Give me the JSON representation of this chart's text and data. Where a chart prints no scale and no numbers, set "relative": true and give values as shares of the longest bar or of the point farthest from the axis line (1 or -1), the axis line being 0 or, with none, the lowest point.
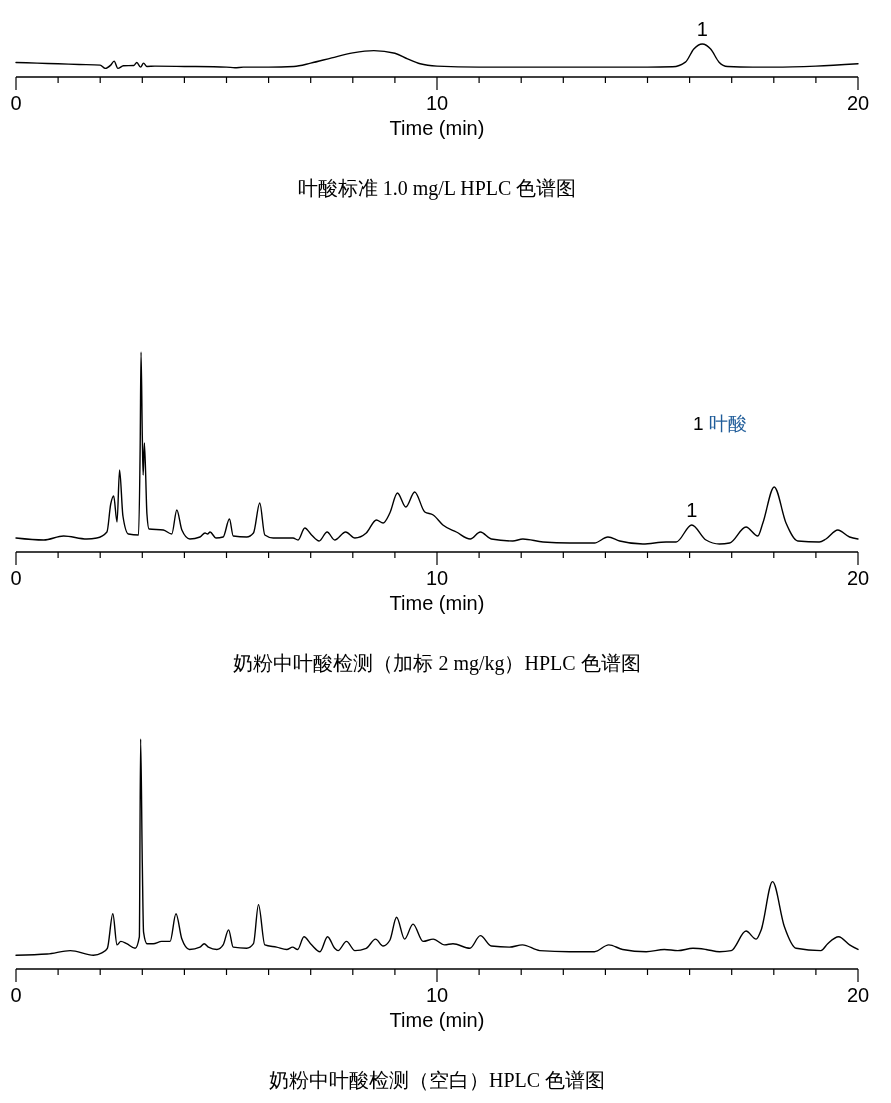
{
  "chart_data": [
    {
      "type": "line",
      "title": "叶酸标准 1.0 mg/L HPLC 色谱图",
      "xlabel": "Time (min)",
      "relative": true,
      "xlim": [
        0,
        20
      ],
      "xticks": [
        0,
        {
          "value": 1,
          "label": null
        },
        {
          "value": 2,
          "label": null
        },
        {
          "value": 3,
          "label": null
        },
        {
          "value": 4,
          "label": null
        },
        {
          "value": 5,
          "label": null
        },
        {
          "value": 6,
          "label": null
        },
        {
          "value": 7,
          "label": null
        },
        {
          "value": 8,
          "label": null
        },
        {
          "value": 9,
          "label": null
        },
        10,
        {
          "value": 11,
          "label": null
        },
        {
          "value": 12,
          "label": null
        },
        {
          "value": 13,
          "label": null
        },
        {
          "value": 14,
          "label": null
        },
        {
          "value": 15,
          "label": null
        },
        {
          "value": 16,
          "label": null
        },
        {
          "value": 17,
          "label": null
        },
        {
          "value": 18,
          "label": null
        },
        {
          "value": 19,
          "label": null
        },
        20
      ],
      "x": [
        0,
        0.5,
        1,
        1.5,
        2,
        2.12,
        2.25,
        2.33,
        2.42,
        2.55,
        2.8,
        2.87,
        2.96,
        3.03,
        3.11,
        3.3,
        4,
        5,
        5.2,
        5.4,
        6,
        6.6,
        7,
        7.5,
        8,
        8.5,
        9,
        9.3,
        9.6,
        10,
        11,
        12,
        13,
        14,
        15,
        15.6,
        15.9,
        16.1,
        16.3,
        16.5,
        16.7,
        16.9,
        17.5,
        18,
        19,
        20
      ],
      "series": [
        {
          "color": "#000000",
          "values": [
            0.44,
            0.42,
            0.4,
            0.38,
            0.36,
            0.26,
            0.36,
            0.48,
            0.26,
            0.34,
            0.35,
            0.44,
            0.3,
            0.42,
            0.32,
            0.33,
            0.32,
            0.3,
            0.28,
            0.3,
            0.3,
            0.32,
            0.42,
            0.58,
            0.73,
            0.8,
            0.72,
            0.55,
            0.4,
            0.33,
            0.3,
            0.3,
            0.3,
            0.3,
            0.3,
            0.31,
            0.45,
            0.85,
            1.0,
            0.85,
            0.45,
            0.32,
            0.3,
            0.3,
            0.33,
            0.4
          ]
        }
      ],
      "annotations": [
        {
          "text": "1",
          "x": 16.3,
          "y": 1.0
        }
      ]
    },
    {
      "type": "line",
      "title": "奶粉中叶酸检测（加标 2 mg/kg）HPLC 色谱图",
      "xlabel": "Time (min)",
      "relative": true,
      "xlim": [
        0,
        20
      ],
      "xticks": [
        0,
        {
          "value": 1,
          "label": null
        },
        {
          "value": 2,
          "label": null
        },
        {
          "value": 3,
          "label": null
        },
        {
          "value": 4,
          "label": null
        },
        {
          "value": 5,
          "label": null
        },
        {
          "value": 6,
          "label": null
        },
        {
          "value": 7,
          "label": null
        },
        {
          "value": 8,
          "label": null
        },
        {
          "value": 9,
          "label": null
        },
        10,
        {
          "value": 11,
          "label": null
        },
        {
          "value": 12,
          "label": null
        },
        {
          "value": 13,
          "label": null
        },
        {
          "value": 14,
          "label": null
        },
        {
          "value": 15,
          "label": null
        },
        {
          "value": 16,
          "label": null
        },
        {
          "value": 17,
          "label": null
        },
        {
          "value": 18,
          "label": null
        },
        {
          "value": 19,
          "label": null
        },
        20
      ],
      "x": [
        0,
        0.66,
        1.13,
        1.68,
        1.92,
        2.16,
        2.25,
        2.32,
        2.4,
        2.46,
        2.54,
        2.67,
        2.91,
        2.95,
        2.97,
        3.0,
        3.02,
        3.05,
        3.11,
        3.16,
        3.5,
        3.7,
        3.82,
        3.94,
        4.13,
        4.37,
        4.49,
        4.55,
        4.61,
        4.75,
        4.92,
        5.07,
        5.16,
        5.48,
        5.64,
        5.79,
        5.91,
        6.11,
        6.58,
        6.7,
        6.86,
        7.02,
        7.2,
        7.39,
        7.57,
        7.83,
        8.05,
        8.32,
        8.56,
        8.72,
        8.88,
        9.06,
        9.26,
        9.47,
        9.71,
        9.91,
        10.14,
        10.46,
        10.79,
        11.03,
        11.29,
        11.8,
        12.04,
        12.52,
        13.15,
        13.74,
        14.06,
        14.34,
        14.89,
        15.44,
        15.68,
        16.05,
        16.39,
        16.71,
        16.95,
        17.34,
        17.62,
        17.74,
        18.01,
        18.29,
        18.57,
        19.08,
        19.24,
        19.52,
        19.8,
        20
      ],
      "series": [
        {
          "color": "#000000",
          "values": [
            0.07,
            0.06,
            0.08,
            0.065,
            0.07,
            0.1,
            0.24,
            0.28,
            0.15,
            0.41,
            0.18,
            0.09,
            0.085,
            0.54,
            1.0,
            0.58,
            0.385,
            0.545,
            0.19,
            0.115,
            0.11,
            0.09,
            0.21,
            0.11,
            0.065,
            0.075,
            0.095,
            0.09,
            0.1,
            0.07,
            0.075,
            0.165,
            0.08,
            0.075,
            0.095,
            0.245,
            0.085,
            0.07,
            0.07,
            0.06,
            0.12,
            0.085,
            0.055,
            0.1,
            0.06,
            0.1,
            0.07,
            0.095,
            0.16,
            0.145,
            0.195,
            0.295,
            0.225,
            0.3,
            0.2,
            0.185,
            0.135,
            0.1,
            0.065,
            0.1,
            0.065,
            0.055,
            0.065,
            0.05,
            0.045,
            0.045,
            0.075,
            0.055,
            0.04,
            0.05,
            0.05,
            0.135,
            0.06,
            0.04,
            0.045,
            0.125,
            0.08,
            0.145,
            0.325,
            0.145,
            0.055,
            0.05,
            0.065,
            0.11,
            0.075,
            0.065
          ]
        }
      ],
      "annotations": [
        {
          "text": "1",
          "x": 16.05,
          "y": 0.135
        },
        "1 叶酸"
      ]
    },
    {
      "type": "line",
      "title": "奶粉中叶酸检测（空白）HPLC 色谱图",
      "xlabel": "Time (min)",
      "relative": true,
      "xlim": [
        0,
        20
      ],
      "xticks": [
        0,
        {
          "value": 1,
          "label": null
        },
        {
          "value": 2,
          "label": null
        },
        {
          "value": 3,
          "label": null
        },
        {
          "value": 4,
          "label": null
        },
        {
          "value": 5,
          "label": null
        },
        {
          "value": 6,
          "label": null
        },
        {
          "value": 7,
          "label": null
        },
        {
          "value": 8,
          "label": null
        },
        {
          "value": 9,
          "label": null
        },
        10,
        {
          "value": 11,
          "label": null
        },
        {
          "value": 12,
          "label": null
        },
        {
          "value": 13,
          "label": null
        },
        {
          "value": 14,
          "label": null
        },
        {
          "value": 15,
          "label": null
        },
        {
          "value": 16,
          "label": null
        },
        {
          "value": 17,
          "label": null
        },
        {
          "value": 18,
          "label": null
        },
        {
          "value": 19,
          "label": null
        },
        20
      ],
      "x": [
        0,
        0.74,
        1.29,
        1.84,
        2.04,
        2.17,
        2.3,
        2.4,
        2.49,
        2.63,
        2.83,
        2.93,
        2.96,
        3.0,
        3.03,
        3.11,
        3.26,
        3.46,
        3.66,
        3.8,
        3.94,
        4.12,
        4.37,
        4.47,
        4.57,
        4.77,
        4.92,
        5.05,
        5.16,
        5.48,
        5.64,
        5.76,
        5.91,
        6.19,
        6.43,
        6.57,
        6.69,
        6.84,
        7.02,
        7.22,
        7.4,
        7.57,
        7.65,
        7.85,
        8.05,
        8.32,
        8.54,
        8.72,
        8.88,
        9.04,
        9.23,
        9.43,
        9.67,
        9.91,
        10.18,
        10.38,
        10.78,
        11.03,
        11.29,
        11.72,
        12.03,
        12.44,
        13.15,
        13.74,
        14.08,
        14.41,
        14.97,
        15.4,
        15.72,
        16.08,
        16.39,
        16.71,
        16.99,
        17.34,
        17.58,
        17.7,
        17.97,
        18.25,
        18.53,
        19.12,
        19.28,
        19.54,
        19.8,
        20
      ],
      "series": [
        {
          "color": "#000000",
          "values": [
            0.06,
            0.065,
            0.08,
            0.06,
            0.07,
            0.09,
            0.24,
            0.105,
            0.12,
            0.11,
            0.09,
            0.14,
            1.0,
            0.46,
            0.16,
            0.11,
            0.11,
            0.12,
            0.12,
            0.24,
            0.13,
            0.085,
            0.095,
            0.11,
            0.095,
            0.085,
            0.105,
            0.17,
            0.095,
            0.09,
            0.11,
            0.28,
            0.105,
            0.095,
            0.085,
            0.095,
            0.085,
            0.14,
            0.105,
            0.075,
            0.14,
            0.09,
            0.08,
            0.12,
            0.08,
            0.09,
            0.13,
            0.1,
            0.125,
            0.225,
            0.13,
            0.195,
            0.12,
            0.13,
            0.105,
            0.11,
            0.09,
            0.145,
            0.1,
            0.095,
            0.105,
            0.08,
            0.075,
            0.075,
            0.105,
            0.085,
            0.075,
            0.085,
            0.08,
            0.09,
            0.085,
            0.075,
            0.08,
            0.165,
            0.13,
            0.17,
            0.38,
            0.185,
            0.09,
            0.08,
            0.11,
            0.14,
            0.105,
            0.085
          ]
        }
      ]
    }
  ]
}
